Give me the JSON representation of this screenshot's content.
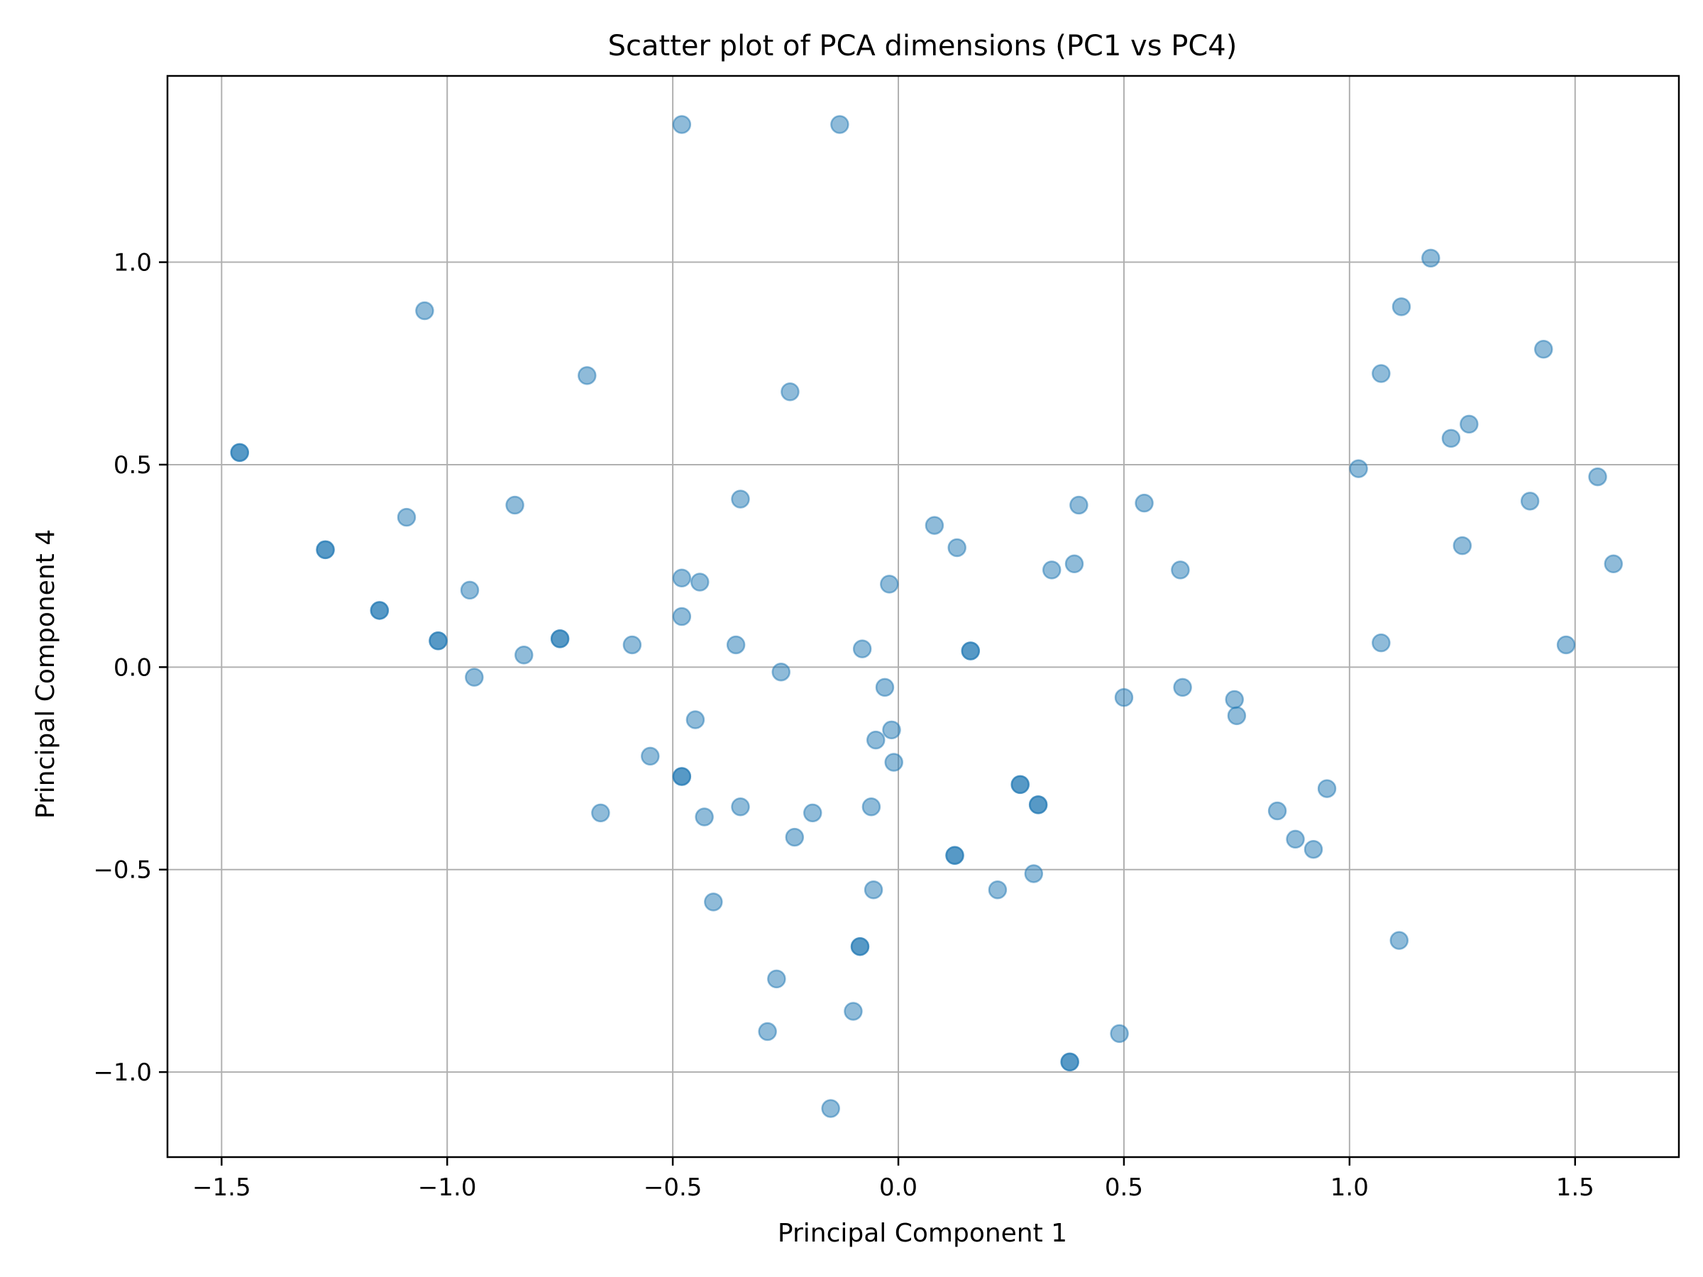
{
  "chart_data": {
    "type": "scatter",
    "title": "Scatter plot of PCA dimensions (PC1 vs PC4)",
    "xlabel": "Principal Component 1",
    "ylabel": "Principal Component 4",
    "xlim": [
      -1.62,
      1.73
    ],
    "ylim": [
      -1.21,
      1.46
    ],
    "xticks": [
      -1.5,
      -1.0,
      -0.5,
      0.0,
      0.5,
      1.0,
      1.5
    ],
    "xtick_labels": [
      "−1.5",
      "−1.0",
      "−0.5",
      "0.0",
      "0.5",
      "1.0",
      "1.5"
    ],
    "yticks": [
      -1.0,
      -0.5,
      0.0,
      0.5,
      1.0
    ],
    "ytick_labels": [
      "−1.0",
      "−0.5",
      "0.0",
      "0.5",
      "1.0"
    ],
    "grid": true,
    "marker_color": "#1f77b4",
    "marker_alpha": 0.5,
    "points": [
      {
        "x": -1.46,
        "y": 0.53
      },
      {
        "x": -1.46,
        "y": 0.53
      },
      {
        "x": -1.27,
        "y": 0.29
      },
      {
        "x": -1.27,
        "y": 0.29
      },
      {
        "x": -1.15,
        "y": 0.14
      },
      {
        "x": -1.15,
        "y": 0.14
      },
      {
        "x": -1.09,
        "y": 0.37
      },
      {
        "x": -1.05,
        "y": 0.88
      },
      {
        "x": -1.02,
        "y": 0.065
      },
      {
        "x": -1.02,
        "y": 0.065
      },
      {
        "x": -0.95,
        "y": 0.19
      },
      {
        "x": -0.94,
        "y": -0.025
      },
      {
        "x": -0.85,
        "y": 0.4
      },
      {
        "x": -0.83,
        "y": 0.03
      },
      {
        "x": -0.75,
        "y": 0.07
      },
      {
        "x": -0.75,
        "y": 0.07
      },
      {
        "x": -0.69,
        "y": 0.72
      },
      {
        "x": -0.66,
        "y": -0.36
      },
      {
        "x": -0.59,
        "y": 0.055
      },
      {
        "x": -0.55,
        "y": -0.22
      },
      {
        "x": -0.48,
        "y": 1.34
      },
      {
        "x": -0.48,
        "y": 0.22
      },
      {
        "x": -0.48,
        "y": 0.125
      },
      {
        "x": -0.48,
        "y": -0.27
      },
      {
        "x": -0.48,
        "y": -0.27
      },
      {
        "x": -0.45,
        "y": -0.13
      },
      {
        "x": -0.44,
        "y": 0.21
      },
      {
        "x": -0.43,
        "y": -0.37
      },
      {
        "x": -0.41,
        "y": -0.58
      },
      {
        "x": -0.36,
        "y": 0.055
      },
      {
        "x": -0.35,
        "y": 0.415
      },
      {
        "x": -0.35,
        "y": -0.345
      },
      {
        "x": -0.27,
        "y": -0.77
      },
      {
        "x": -0.26,
        "y": -0.012
      },
      {
        "x": -0.29,
        "y": -0.9
      },
      {
        "x": -0.24,
        "y": 0.68
      },
      {
        "x": -0.23,
        "y": -0.42
      },
      {
        "x": -0.19,
        "y": -0.36
      },
      {
        "x": -0.15,
        "y": -1.09
      },
      {
        "x": -0.13,
        "y": 1.34
      },
      {
        "x": -0.1,
        "y": -0.85
      },
      {
        "x": -0.085,
        "y": -0.69
      },
      {
        "x": -0.085,
        "y": -0.69
      },
      {
        "x": -0.08,
        "y": 0.045
      },
      {
        "x": -0.06,
        "y": -0.345
      },
      {
        "x": -0.055,
        "y": -0.55
      },
      {
        "x": -0.05,
        "y": -0.18
      },
      {
        "x": -0.03,
        "y": -0.05
      },
      {
        "x": -0.02,
        "y": 0.205
      },
      {
        "x": -0.015,
        "y": -0.155
      },
      {
        "x": -0.01,
        "y": -0.235
      },
      {
        "x": 0.08,
        "y": 0.35
      },
      {
        "x": 0.125,
        "y": -0.465
      },
      {
        "x": 0.125,
        "y": -0.465
      },
      {
        "x": 0.13,
        "y": 0.295
      },
      {
        "x": 0.16,
        "y": 0.04
      },
      {
        "x": 0.16,
        "y": 0.04
      },
      {
        "x": 0.22,
        "y": -0.55
      },
      {
        "x": 0.27,
        "y": -0.29
      },
      {
        "x": 0.27,
        "y": -0.29
      },
      {
        "x": 0.3,
        "y": -0.51
      },
      {
        "x": 0.31,
        "y": -0.34
      },
      {
        "x": 0.31,
        "y": -0.34
      },
      {
        "x": 0.34,
        "y": 0.24
      },
      {
        "x": 0.38,
        "y": -0.975
      },
      {
        "x": 0.38,
        "y": -0.975
      },
      {
        "x": 0.39,
        "y": 0.255
      },
      {
        "x": 0.4,
        "y": 0.4
      },
      {
        "x": 0.49,
        "y": -0.905
      },
      {
        "x": 0.5,
        "y": -0.075
      },
      {
        "x": 0.545,
        "y": 0.405
      },
      {
        "x": 0.625,
        "y": 0.24
      },
      {
        "x": 0.63,
        "y": -0.05
      },
      {
        "x": 0.745,
        "y": -0.08
      },
      {
        "x": 0.75,
        "y": -0.12
      },
      {
        "x": 0.84,
        "y": -0.355
      },
      {
        "x": 0.88,
        "y": -0.425
      },
      {
        "x": 0.92,
        "y": -0.45
      },
      {
        "x": 0.95,
        "y": -0.3
      },
      {
        "x": 1.02,
        "y": 0.49
      },
      {
        "x": 1.07,
        "y": 0.725
      },
      {
        "x": 1.07,
        "y": 0.06
      },
      {
        "x": 1.11,
        "y": -0.675
      },
      {
        "x": 1.115,
        "y": 0.89
      },
      {
        "x": 1.18,
        "y": 1.01
      },
      {
        "x": 1.225,
        "y": 0.565
      },
      {
        "x": 1.25,
        "y": 0.3
      },
      {
        "x": 1.265,
        "y": 0.6
      },
      {
        "x": 1.4,
        "y": 0.41
      },
      {
        "x": 1.43,
        "y": 0.785
      },
      {
        "x": 1.48,
        "y": 0.055
      },
      {
        "x": 1.55,
        "y": 0.47
      },
      {
        "x": 1.585,
        "y": 0.255
      }
    ]
  }
}
